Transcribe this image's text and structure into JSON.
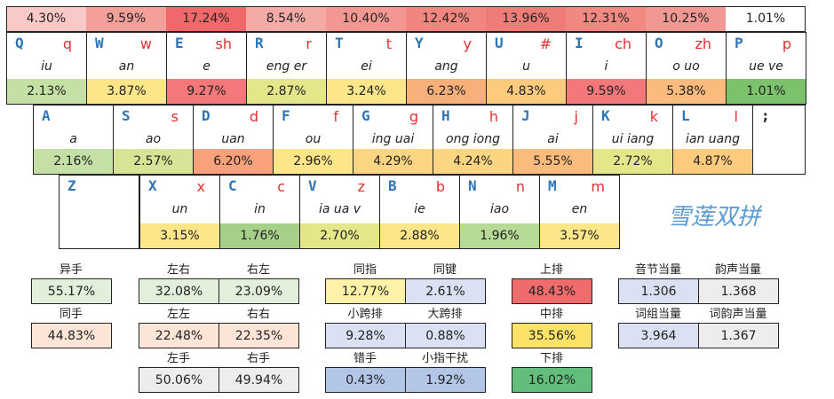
{
  "top_row": [
    {
      "value": "4.30%",
      "color": "#f8c9c6"
    },
    {
      "value": "9.59%",
      "color": "#f4a09a"
    },
    {
      "value": "17.24%",
      "color": "#f0686a"
    },
    {
      "value": "8.54%",
      "color": "#f4aba6"
    },
    {
      "value": "10.40%",
      "color": "#f29792"
    },
    {
      "value": "12.42%",
      "color": "#f18680"
    },
    {
      "value": "13.96%",
      "color": "#f07c77"
    },
    {
      "value": "12.31%",
      "color": "#f18882"
    },
    {
      "value": "10.25%",
      "color": "#f29893"
    },
    {
      "value": "1.01%",
      "color": "#ffffff"
    }
  ],
  "row1": [
    {
      "key": "Q",
      "shengmu": "q",
      "yunmu": "iu",
      "pct": "2.13%",
      "color": "#c5e0a5"
    },
    {
      "key": "W",
      "shengmu": "w",
      "yunmu": "an",
      "pct": "3.87%",
      "color": "#fde58a"
    },
    {
      "key": "E",
      "shengmu": "sh",
      "yunmu": "e",
      "pct": "9.27%",
      "color": "#f4787a"
    },
    {
      "key": "R",
      "shengmu": "r",
      "yunmu": "eng er",
      "pct": "2.87%",
      "color": "#e5e68a"
    },
    {
      "key": "T",
      "shengmu": "t",
      "yunmu": "ei",
      "pct": "3.24%",
      "color": "#fde58a"
    },
    {
      "key": "Y",
      "shengmu": "y",
      "yunmu": "ang",
      "pct": "6.23%",
      "color": "#f8b07a"
    },
    {
      "key": "U",
      "shengmu": "#",
      "yunmu": "u",
      "pct": "4.83%",
      "color": "#fccb7e"
    },
    {
      "key": "I",
      "shengmu": "ch",
      "yunmu": "i",
      "pct": "9.59%",
      "color": "#f4787a"
    },
    {
      "key": "O",
      "shengmu": "zh",
      "yunmu": "o uo",
      "pct": "5.38%",
      "color": "#fbbb7c"
    },
    {
      "key": "P",
      "shengmu": "p",
      "yunmu": "ue ve",
      "pct": "1.01%",
      "color": "#7cc26d"
    }
  ],
  "row2": [
    {
      "key": "A",
      "shengmu": "",
      "yunmu": "a",
      "pct": "2.16%",
      "color": "#c5e0a5"
    },
    {
      "key": "S",
      "shengmu": "s",
      "yunmu": "ao",
      "pct": "2.57%",
      "color": "#d8e396"
    },
    {
      "key": "D",
      "shengmu": "d",
      "yunmu": "uan",
      "pct": "6.20%",
      "color": "#f8a17a"
    },
    {
      "key": "F",
      "shengmu": "f",
      "yunmu": "ou",
      "pct": "2.96%",
      "color": "#fde58a"
    },
    {
      "key": "G",
      "shengmu": "g",
      "yunmu": "ing uai",
      "pct": "4.29%",
      "color": "#fcd582"
    },
    {
      "key": "H",
      "shengmu": "h",
      "yunmu": "ong iong",
      "pct": "4.24%",
      "color": "#fcd582"
    },
    {
      "key": "J",
      "shengmu": "j",
      "yunmu": "ai",
      "pct": "5.55%",
      "color": "#fbbb7c"
    },
    {
      "key": "K",
      "shengmu": "k",
      "yunmu": "ui iang",
      "pct": "2.72%",
      "color": "#e5e68a"
    },
    {
      "key": "L",
      "shengmu": "l",
      "yunmu": "ian uang",
      "pct": "4.87%",
      "color": "#fccb7e"
    }
  ],
  "semicolon_key": ";",
  "row3": [
    {
      "key": "Z",
      "shengmu": "",
      "yunmu": "",
      "pct": "",
      "color": "#ffffff"
    },
    {
      "key": "X",
      "shengmu": "x",
      "yunmu": "un",
      "pct": "3.15%",
      "color": "#fde58a"
    },
    {
      "key": "C",
      "shengmu": "c",
      "yunmu": "in",
      "pct": "1.76%",
      "color": "#a6d08a"
    },
    {
      "key": "V",
      "shengmu": "z",
      "yunmu": "ia ua v",
      "pct": "2.70%",
      "color": "#e5e68a"
    },
    {
      "key": "B",
      "shengmu": "b",
      "yunmu": "ie",
      "pct": "2.88%",
      "color": "#fde58a"
    },
    {
      "key": "N",
      "shengmu": "n",
      "yunmu": "iao",
      "pct": "1.96%",
      "color": "#b7da97"
    },
    {
      "key": "M",
      "shengmu": "m",
      "yunmu": "en",
      "pct": "3.57%",
      "color": "#fde58a"
    }
  ],
  "brand": "雪莲双拼",
  "stats": {
    "yishou": {
      "label": "异手",
      "value": "55.17%",
      "color": "#e2efda"
    },
    "tongshou": {
      "label": "同手",
      "value": "44.83%",
      "color": "#fce4d6"
    },
    "zuoyou": {
      "label": "左右",
      "value": "32.08%",
      "color": "#e2efda"
    },
    "youzuo": {
      "label": "右左",
      "value": "23.09%",
      "color": "#e2efda"
    },
    "zuozuo": {
      "label": "左左",
      "value": "22.48%",
      "color": "#fce4d6"
    },
    "youyou": {
      "label": "右右",
      "value": "22.35%",
      "color": "#fce4d6"
    },
    "zuoshou": {
      "label": "左手",
      "value": "50.06%",
      "color": "#ededed"
    },
    "youshou": {
      "label": "右手",
      "value": "49.94%",
      "color": "#ededed"
    },
    "tongzhi": {
      "label": "同指",
      "value": "12.77%",
      "color": "#fff2a8"
    },
    "tongjian": {
      "label": "同键",
      "value": "2.61%",
      "color": "#d9e1f2"
    },
    "xiaokuapai": {
      "label": "小跨排",
      "value": "9.28%",
      "color": "#d9e1f2"
    },
    "dakuapai": {
      "label": "大跨排",
      "value": "0.88%",
      "color": "#d9e1f2"
    },
    "cuoshou": {
      "label": "错手",
      "value": "0.43%",
      "color": "#b4c6e7"
    },
    "xiaozhi": {
      "label": "小指干扰",
      "value": "1.92%",
      "color": "#b4c6e7"
    },
    "shangpai": {
      "label": "上排",
      "value": "48.43%",
      "color": "#f06b6b"
    },
    "zhongpai": {
      "label": "中排",
      "value": "35.56%",
      "color": "#fde26a"
    },
    "xiapai": {
      "label": "下排",
      "value": "16.02%",
      "color": "#63be7b"
    },
    "yinjie": {
      "label": "音节当量",
      "value": "1.306",
      "color": "#d9e1f2"
    },
    "yunsheng": {
      "label": "韵声当量",
      "value": "1.368",
      "color": "#ededed"
    },
    "cizu": {
      "label": "词组当量",
      "value": "3.964",
      "color": "#d9e1f2"
    },
    "ciyunsheng": {
      "label": "词韵声当量",
      "value": "1.367",
      "color": "#ededed"
    }
  }
}
